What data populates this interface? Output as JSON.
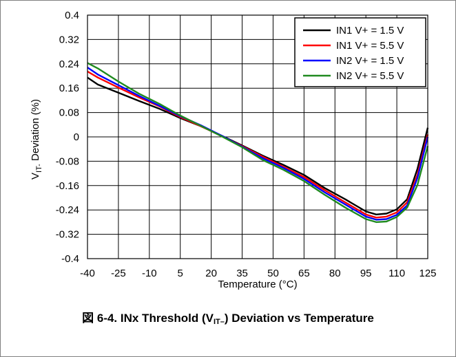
{
  "chart_data": {
    "type": "line",
    "xlabel": "Temperature (°C)",
    "ylabel_main": "V",
    "ylabel_sub": "IT-",
    "ylabel_rest": " Deviation (%)",
    "xlim": [
      -40,
      125
    ],
    "ylim": [
      -0.4,
      0.4
    ],
    "xticks": [
      -40,
      -25,
      -10,
      5,
      20,
      35,
      50,
      65,
      80,
      95,
      110,
      125
    ],
    "yticks": [
      0.4,
      0.32,
      0.24,
      0.16,
      0.08,
      0,
      -0.08,
      -0.16,
      -0.24,
      -0.32,
      -0.4
    ],
    "ytick_labels": [
      "0.4",
      "0.32",
      "0.24",
      "0.16",
      "0.08",
      "0",
      "-0.08",
      "-0.16",
      "-0.24",
      "-0.32",
      "-0.4"
    ],
    "grid": true,
    "legend_position": "top-right",
    "series": [
      {
        "name": "IN1 V+ = 1.5 V",
        "color": "#000000",
        "points": [
          [
            -40,
            0.195
          ],
          [
            -35,
            0.172
          ],
          [
            -25,
            0.145
          ],
          [
            -15,
            0.118
          ],
          [
            -5,
            0.092
          ],
          [
            5,
            0.062
          ],
          [
            15,
            0.035
          ],
          [
            25,
            0.004
          ],
          [
            35,
            -0.028
          ],
          [
            45,
            -0.062
          ],
          [
            55,
            -0.092
          ],
          [
            65,
            -0.125
          ],
          [
            75,
            -0.168
          ],
          [
            85,
            -0.205
          ],
          [
            95,
            -0.245
          ],
          [
            100,
            -0.255
          ],
          [
            105,
            -0.252
          ],
          [
            110,
            -0.238
          ],
          [
            115,
            -0.205
          ],
          [
            120,
            -0.105
          ],
          [
            125,
            0.03
          ]
        ]
      },
      {
        "name": "IN1 V+ = 5.5 V",
        "color": "#ff0000",
        "points": [
          [
            -40,
            0.215
          ],
          [
            -35,
            0.195
          ],
          [
            -25,
            0.162
          ],
          [
            -15,
            0.13
          ],
          [
            -5,
            0.1
          ],
          [
            5,
            0.065
          ],
          [
            15,
            0.035
          ],
          [
            25,
            0.003
          ],
          [
            35,
            -0.03
          ],
          [
            45,
            -0.065
          ],
          [
            55,
            -0.098
          ],
          [
            65,
            -0.132
          ],
          [
            75,
            -0.175
          ],
          [
            85,
            -0.215
          ],
          [
            95,
            -0.255
          ],
          [
            100,
            -0.265
          ],
          [
            105,
            -0.262
          ],
          [
            110,
            -0.248
          ],
          [
            115,
            -0.215
          ],
          [
            120,
            -0.125
          ],
          [
            125,
            0.008
          ]
        ]
      },
      {
        "name": "IN2 V+ = 1.5 V",
        "color": "#0000ff",
        "points": [
          [
            -40,
            0.228
          ],
          [
            -35,
            0.205
          ],
          [
            -25,
            0.17
          ],
          [
            -15,
            0.135
          ],
          [
            -5,
            0.102
          ],
          [
            5,
            0.068
          ],
          [
            15,
            0.038
          ],
          [
            25,
            0.004
          ],
          [
            35,
            -0.032
          ],
          [
            45,
            -0.07
          ],
          [
            55,
            -0.102
          ],
          [
            65,
            -0.138
          ],
          [
            75,
            -0.182
          ],
          [
            85,
            -0.222
          ],
          [
            95,
            -0.262
          ],
          [
            100,
            -0.272
          ],
          [
            105,
            -0.27
          ],
          [
            110,
            -0.256
          ],
          [
            115,
            -0.225
          ],
          [
            120,
            -0.135
          ],
          [
            125,
            0.0
          ]
        ]
      },
      {
        "name": "IN2 V+ = 5.5 V",
        "color": "#1f8a1f",
        "points": [
          [
            -40,
            0.243
          ],
          [
            -35,
            0.225
          ],
          [
            -25,
            0.182
          ],
          [
            -15,
            0.142
          ],
          [
            -5,
            0.108
          ],
          [
            5,
            0.07
          ],
          [
            15,
            0.036
          ],
          [
            25,
            0.002
          ],
          [
            35,
            -0.034
          ],
          [
            45,
            -0.076
          ],
          [
            55,
            -0.108
          ],
          [
            65,
            -0.145
          ],
          [
            75,
            -0.19
          ],
          [
            85,
            -0.232
          ],
          [
            95,
            -0.27
          ],
          [
            100,
            -0.28
          ],
          [
            105,
            -0.278
          ],
          [
            110,
            -0.263
          ],
          [
            115,
            -0.232
          ],
          [
            120,
            -0.158
          ],
          [
            125,
            -0.03
          ]
        ]
      }
    ]
  },
  "caption": {
    "prefix": "図 6-4. INx Threshold (V",
    "sub": "IT–",
    "suffix": ") Deviation vs Temperature"
  }
}
